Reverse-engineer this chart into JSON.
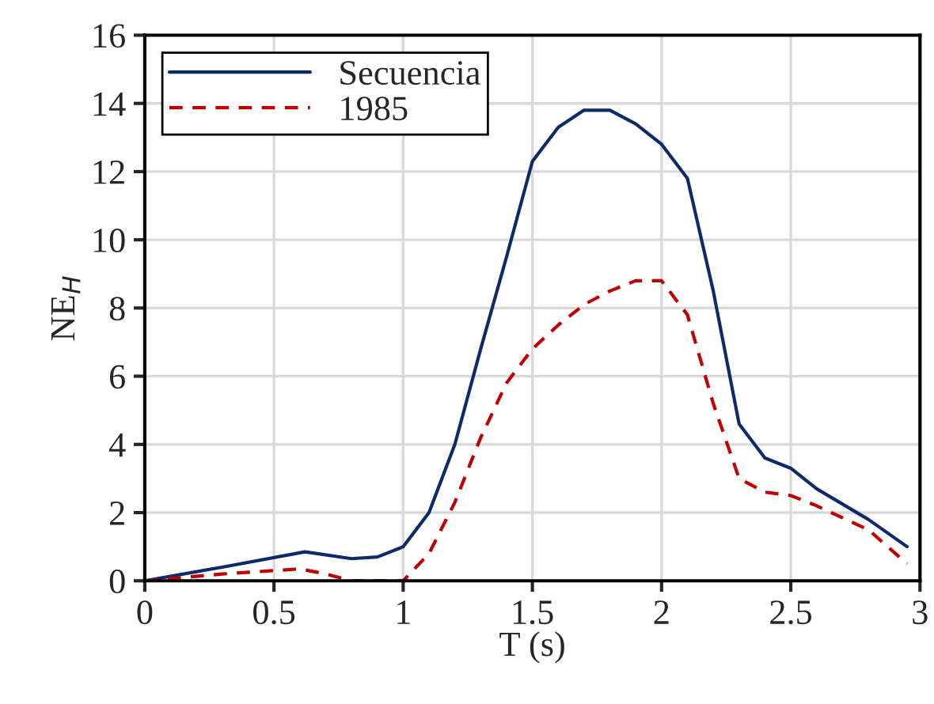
{
  "chart_data": {
    "type": "line",
    "xlabel": "T (s)",
    "ylabel": "NE$_{H}$",
    "xlim": [
      0,
      3
    ],
    "xticks": [
      0,
      0.5,
      1,
      1.5,
      2,
      2.5,
      3
    ],
    "ylim": [
      0,
      16
    ],
    "yticks": [
      0,
      2,
      4,
      6,
      8,
      10,
      12,
      14,
      16
    ],
    "grid": true,
    "legend": "top left",
    "series": [
      {
        "name": "Secuencia",
        "color": "#0d2a6b",
        "line_style": "solid",
        "x": [
          0,
          0.3,
          0.62,
          0.8,
          0.9,
          1.0,
          1.1,
          1.2,
          1.3,
          1.4,
          1.5,
          1.6,
          1.7,
          1.8,
          1.9,
          2.0,
          2.1,
          2.2,
          2.3,
          2.4,
          2.5,
          2.6,
          2.8,
          2.95
        ],
        "values": [
          0,
          0.4,
          0.85,
          0.65,
          0.7,
          1.0,
          2.0,
          4.0,
          6.8,
          9.5,
          12.3,
          13.3,
          13.8,
          13.8,
          13.4,
          12.8,
          11.8,
          8.5,
          4.6,
          3.6,
          3.3,
          2.7,
          1.8,
          1.0
        ]
      },
      {
        "name": "1985",
        "color": "#c00000",
        "line_style": "dashed",
        "x": [
          0,
          0.3,
          0.6,
          0.7,
          0.8,
          1.0,
          1.1,
          1.2,
          1.3,
          1.4,
          1.5,
          1.6,
          1.7,
          1.8,
          1.9,
          2.0,
          2.1,
          2.2,
          2.3,
          2.4,
          2.5,
          2.6,
          2.8,
          2.95
        ],
        "values": [
          0,
          0.2,
          0.35,
          0.2,
          0,
          0,
          0.8,
          2.3,
          4.2,
          5.8,
          6.8,
          7.5,
          8.1,
          8.5,
          8.8,
          8.8,
          7.8,
          5.2,
          3.0,
          2.6,
          2.5,
          2.2,
          1.5,
          0.5
        ]
      }
    ]
  }
}
